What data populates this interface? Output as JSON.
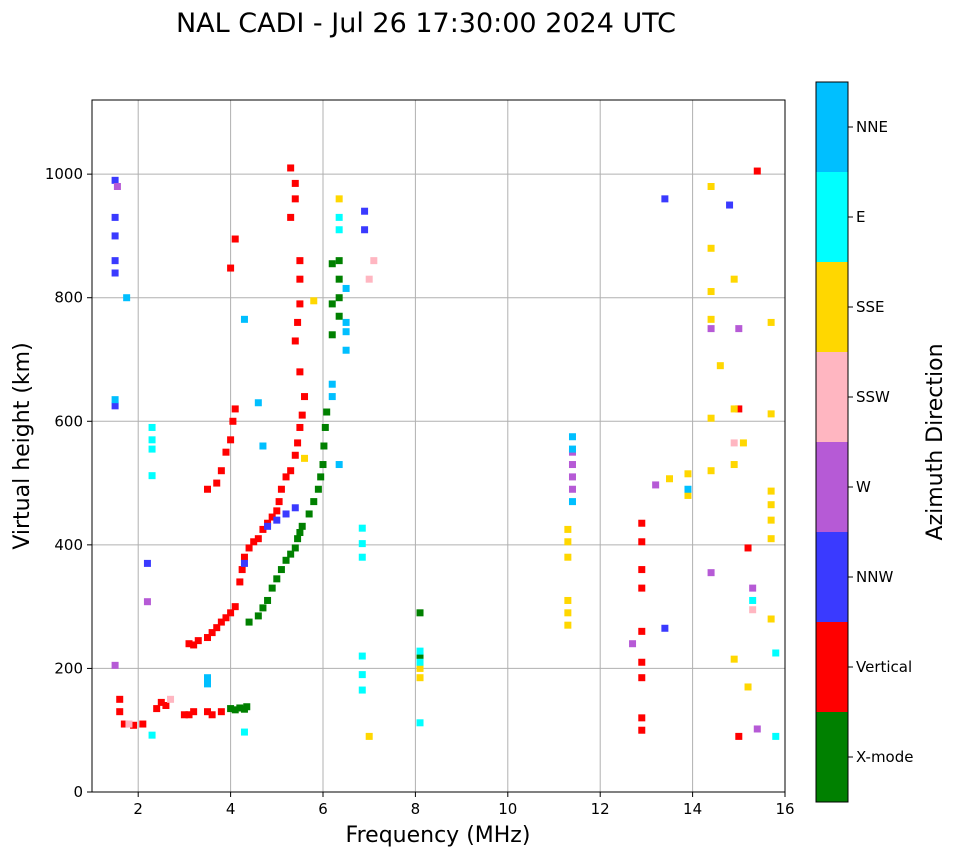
{
  "chart_data": {
    "type": "scatter",
    "title": "NAL CADI - Jul 26 17:30:00 2024 UTC",
    "xlabel": "Frequency (MHz)",
    "ylabel": "Virtual height (km)",
    "xlim": [
      1,
      16
    ],
    "ylim": [
      0,
      1120
    ],
    "xticks": [
      2,
      4,
      6,
      8,
      10,
      12,
      14,
      16
    ],
    "yticks": [
      0,
      200,
      400,
      600,
      800,
      1000
    ],
    "grid": true,
    "colorbar": {
      "title": "Azimuth Direction",
      "categories": [
        {
          "label": "X-mode",
          "color": "#008000"
        },
        {
          "label": "Vertical",
          "color": "#ff0000"
        },
        {
          "label": "NNW",
          "color": "#3a3aff"
        },
        {
          "label": "W",
          "color": "#b65ad6"
        },
        {
          "label": "SSW",
          "color": "#ffb6c1"
        },
        {
          "label": "SSE",
          "color": "#ffd700"
        },
        {
          "label": "E",
          "color": "#00ffff"
        },
        {
          "label": "NNE",
          "color": "#00bfff"
        }
      ]
    },
    "series": [
      {
        "name": "X-mode",
        "points": [
          [
            4,
            135
          ],
          [
            4.1,
            133
          ],
          [
            4.2,
            136
          ],
          [
            4.3,
            134
          ],
          [
            4.35,
            138
          ],
          [
            4.4,
            275
          ],
          [
            4.6,
            285
          ],
          [
            4.7,
            298
          ],
          [
            4.8,
            310
          ],
          [
            4.9,
            330
          ],
          [
            5.0,
            345
          ],
          [
            5.1,
            360
          ],
          [
            5.2,
            375
          ],
          [
            5.3,
            385
          ],
          [
            5.4,
            395
          ],
          [
            5.45,
            410
          ],
          [
            5.5,
            420
          ],
          [
            5.55,
            430
          ],
          [
            5.7,
            450
          ],
          [
            5.8,
            470
          ],
          [
            5.9,
            490
          ],
          [
            5.95,
            510
          ],
          [
            6.0,
            530
          ],
          [
            6.02,
            560
          ],
          [
            6.05,
            590
          ],
          [
            6.08,
            615
          ],
          [
            6.2,
            740
          ],
          [
            6.2,
            790
          ],
          [
            6.2,
            855
          ],
          [
            6.35,
            860
          ],
          [
            6.35,
            830
          ],
          [
            6.35,
            800
          ],
          [
            6.35,
            770
          ],
          [
            8.1,
            290
          ],
          [
            8.1,
            220
          ]
        ]
      },
      {
        "name": "Vertical",
        "points": [
          [
            1.6,
            150
          ],
          [
            1.6,
            130
          ],
          [
            1.7,
            110
          ],
          [
            1.9,
            108
          ],
          [
            2.1,
            110
          ],
          [
            2.4,
            135
          ],
          [
            2.5,
            145
          ],
          [
            2.6,
            140
          ],
          [
            3.0,
            125
          ],
          [
            3.1,
            125
          ],
          [
            3.2,
            130
          ],
          [
            3.5,
            130
          ],
          [
            3.6,
            125
          ],
          [
            3.8,
            130
          ],
          [
            3.1,
            240
          ],
          [
            3.2,
            238
          ],
          [
            3.3,
            245
          ],
          [
            3.5,
            250
          ],
          [
            3.6,
            258
          ],
          [
            3.7,
            266
          ],
          [
            3.8,
            275
          ],
          [
            3.9,
            282
          ],
          [
            4.0,
            290
          ],
          [
            4.1,
            300
          ],
          [
            4.2,
            340
          ],
          [
            4.25,
            360
          ],
          [
            4.3,
            380
          ],
          [
            4.4,
            395
          ],
          [
            4.5,
            405
          ],
          [
            4.6,
            410
          ],
          [
            4.7,
            425
          ],
          [
            4.8,
            435
          ],
          [
            4.9,
            445
          ],
          [
            5.0,
            455
          ],
          [
            5.05,
            470
          ],
          [
            5.1,
            490
          ],
          [
            5.2,
            510
          ],
          [
            5.3,
            520
          ],
          [
            5.4,
            545
          ],
          [
            5.45,
            565
          ],
          [
            5.5,
            590
          ],
          [
            5.55,
            610
          ],
          [
            5.6,
            640
          ],
          [
            5.5,
            680
          ],
          [
            5.4,
            730
          ],
          [
            5.45,
            760
          ],
          [
            5.5,
            790
          ],
          [
            5.5,
            830
          ],
          [
            5.5,
            860
          ],
          [
            5.3,
            930
          ],
          [
            5.4,
            960
          ],
          [
            5.4,
            985
          ],
          [
            5.3,
            1010
          ],
          [
            3.5,
            490
          ],
          [
            3.7,
            500
          ],
          [
            3.8,
            520
          ],
          [
            3.9,
            550
          ],
          [
            4.0,
            570
          ],
          [
            4.05,
            600
          ],
          [
            4.1,
            620
          ],
          [
            4.1,
            895
          ],
          [
            4.0,
            848
          ],
          [
            12.9,
            435
          ],
          [
            12.9,
            405
          ],
          [
            12.9,
            360
          ],
          [
            12.9,
            330
          ],
          [
            12.9,
            260
          ],
          [
            12.9,
            210
          ],
          [
            12.9,
            185
          ],
          [
            12.9,
            120
          ],
          [
            12.9,
            100
          ],
          [
            15.0,
            620
          ],
          [
            15.2,
            395
          ],
          [
            15.4,
            1005
          ],
          [
            15.0,
            90
          ]
        ]
      },
      {
        "name": "NNW",
        "points": [
          [
            1.5,
            990
          ],
          [
            1.5,
            930
          ],
          [
            1.5,
            900
          ],
          [
            1.5,
            860
          ],
          [
            1.5,
            840
          ],
          [
            1.5,
            625
          ],
          [
            4.3,
            370
          ],
          [
            4.8,
            430
          ],
          [
            5.0,
            440
          ],
          [
            5.2,
            450
          ],
          [
            5.4,
            460
          ],
          [
            6.9,
            940
          ],
          [
            6.9,
            910
          ],
          [
            13.4,
            960
          ],
          [
            14.8,
            950
          ],
          [
            13.4,
            265
          ],
          [
            2.2,
            370
          ]
        ]
      },
      {
        "name": "W",
        "points": [
          [
            1.55,
            980
          ],
          [
            1.5,
            205
          ],
          [
            2.2,
            308
          ],
          [
            11.4,
            550
          ],
          [
            11.4,
            530
          ],
          [
            11.4,
            510
          ],
          [
            11.4,
            490
          ],
          [
            13.2,
            497
          ],
          [
            12.7,
            240
          ],
          [
            14.4,
            750
          ],
          [
            15.0,
            750
          ],
          [
            14.4,
            355
          ],
          [
            15.3,
            330
          ],
          [
            15.4,
            102
          ]
        ]
      },
      {
        "name": "SSW",
        "points": [
          [
            7.0,
            830
          ],
          [
            7.1,
            860
          ],
          [
            14.9,
            565
          ],
          [
            15.3,
            295
          ],
          [
            1.8,
            110
          ],
          [
            2.7,
            150
          ]
        ]
      },
      {
        "name": "SSE",
        "points": [
          [
            11.3,
            425
          ],
          [
            11.3,
            405
          ],
          [
            11.3,
            380
          ],
          [
            11.3,
            310
          ],
          [
            11.3,
            290
          ],
          [
            11.3,
            270
          ],
          [
            14.4,
            980
          ],
          [
            14.4,
            880
          ],
          [
            14.4,
            810
          ],
          [
            14.4,
            765
          ],
          [
            14.4,
            605
          ],
          [
            14.4,
            520
          ],
          [
            14.6,
            690
          ],
          [
            14.9,
            830
          ],
          [
            14.9,
            620
          ],
          [
            14.9,
            530
          ],
          [
            15.1,
            565
          ],
          [
            15.7,
            760
          ],
          [
            15.7,
            612
          ],
          [
            15.7,
            487
          ],
          [
            15.7,
            465
          ],
          [
            15.7,
            440
          ],
          [
            15.7,
            410
          ],
          [
            15.7,
            280
          ],
          [
            14.9,
            215
          ],
          [
            15.2,
            170
          ],
          [
            13.5,
            507
          ],
          [
            13.9,
            515
          ],
          [
            13.9,
            480
          ],
          [
            5.8,
            795
          ],
          [
            6.35,
            960
          ],
          [
            5.6,
            540
          ],
          [
            7.0,
            90
          ],
          [
            8.1,
            200
          ],
          [
            8.1,
            185
          ]
        ]
      },
      {
        "name": "E",
        "points": [
          [
            2.3,
            590
          ],
          [
            2.3,
            570
          ],
          [
            2.3,
            555
          ],
          [
            2.3,
            512
          ],
          [
            6.85,
            427
          ],
          [
            6.85,
            402
          ],
          [
            6.85,
            380
          ],
          [
            6.85,
            220
          ],
          [
            6.85,
            190
          ],
          [
            6.85,
            165
          ],
          [
            8.1,
            228
          ],
          [
            8.1,
            210
          ],
          [
            8.1,
            112
          ],
          [
            4.3,
            97
          ],
          [
            2.3,
            92
          ],
          [
            15.3,
            310
          ],
          [
            15.8,
            225
          ],
          [
            15.8,
            90
          ],
          [
            6.35,
            930
          ],
          [
            6.35,
            910
          ]
        ]
      },
      {
        "name": "NNE",
        "points": [
          [
            1.5,
            635
          ],
          [
            11.4,
            575
          ],
          [
            11.4,
            555
          ],
          [
            11.4,
            470
          ],
          [
            6.5,
            760
          ],
          [
            6.5,
            745
          ],
          [
            6.5,
            715
          ],
          [
            6.5,
            815
          ],
          [
            6.35,
            530
          ],
          [
            6.2,
            660
          ],
          [
            6.2,
            640
          ],
          [
            3.5,
            185
          ],
          [
            3.5,
            175
          ],
          [
            4.3,
            765
          ],
          [
            4.6,
            630
          ],
          [
            4.7,
            560
          ],
          [
            1.75,
            800
          ],
          [
            13.9,
            490
          ]
        ]
      }
    ]
  }
}
